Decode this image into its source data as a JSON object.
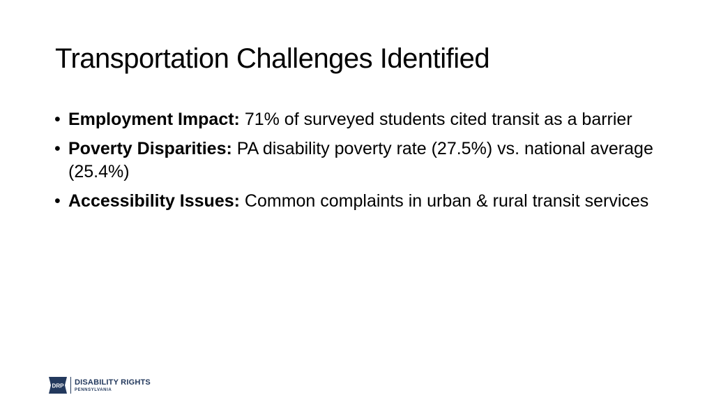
{
  "slide": {
    "title": "Transportation Challenges Identified",
    "bullet_glyph": "•",
    "bullets": [
      {
        "label": "Employment Impact:",
        "text": " 71% of surveyed students cited transit as a barrier"
      },
      {
        "label": "Poverty Disparities:",
        "text": " PA disability poverty rate (27.5%) vs. national average (25.4%)"
      },
      {
        "label": "Accessibility Issues:",
        "text": " Common complaints in urban & rural transit services"
      }
    ]
  },
  "logo": {
    "mark_text": "DRP",
    "line1": "DISABILITY RIGHTS",
    "line2": "PENNSYLVANIA",
    "color": "#23395d"
  }
}
